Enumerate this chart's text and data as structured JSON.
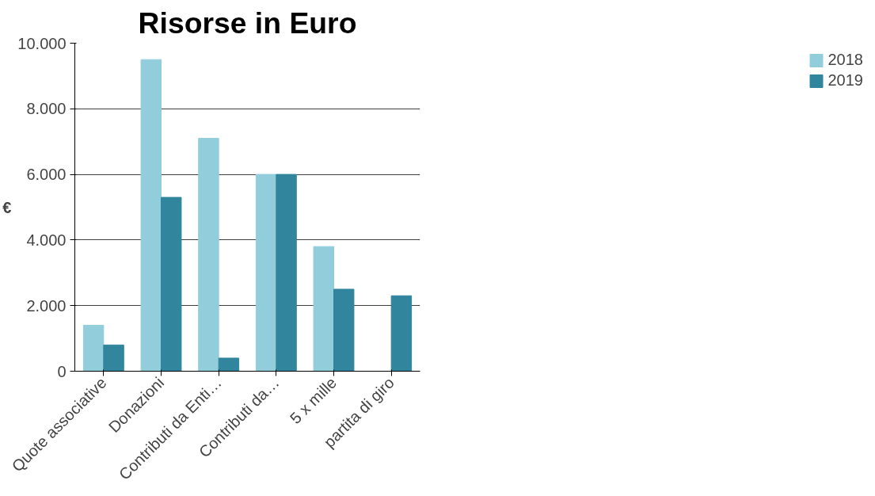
{
  "chart_data": {
    "type": "bar",
    "title": "Risorse in Euro",
    "ylabel": "€",
    "categories": [
      "Quote associative",
      "Donazioni",
      "Contributi da Enti…",
      "Contributi da…",
      "5 x mille",
      "partita di giro"
    ],
    "series": [
      {
        "name": "2018",
        "color": "#92cddc",
        "values": [
          1400,
          9500,
          7100,
          6000,
          3800,
          null
        ]
      },
      {
        "name": "2019",
        "color": "#31859c",
        "values": [
          800,
          5300,
          400,
          6000,
          2500,
          2300
        ]
      }
    ],
    "ylim": [
      0,
      10000
    ],
    "yticks": [
      {
        "value": 0,
        "label": "0"
      },
      {
        "value": 2000,
        "label": "2.000"
      },
      {
        "value": 4000,
        "label": "4.000"
      },
      {
        "value": 6000,
        "label": "6.000"
      },
      {
        "value": 8000,
        "label": "8.000"
      },
      {
        "value": 10000,
        "label": "10.000"
      }
    ],
    "grid": "y",
    "legend": "right"
  }
}
